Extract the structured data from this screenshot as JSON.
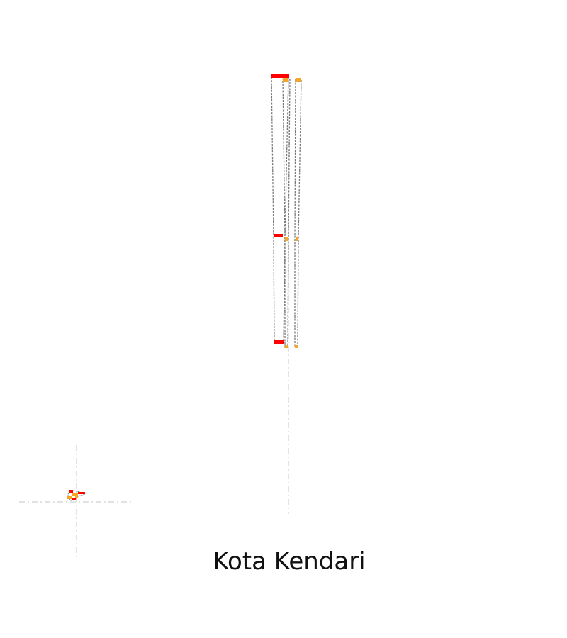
{
  "map": {
    "title": "Kota Kendari",
    "colors": {
      "background": "#ffffff",
      "guide_line": "#d0d0d0",
      "boundary": "#7a7a7a",
      "feature_primary": "#ff0000",
      "feature_secondary": "#f5a623"
    }
  }
}
